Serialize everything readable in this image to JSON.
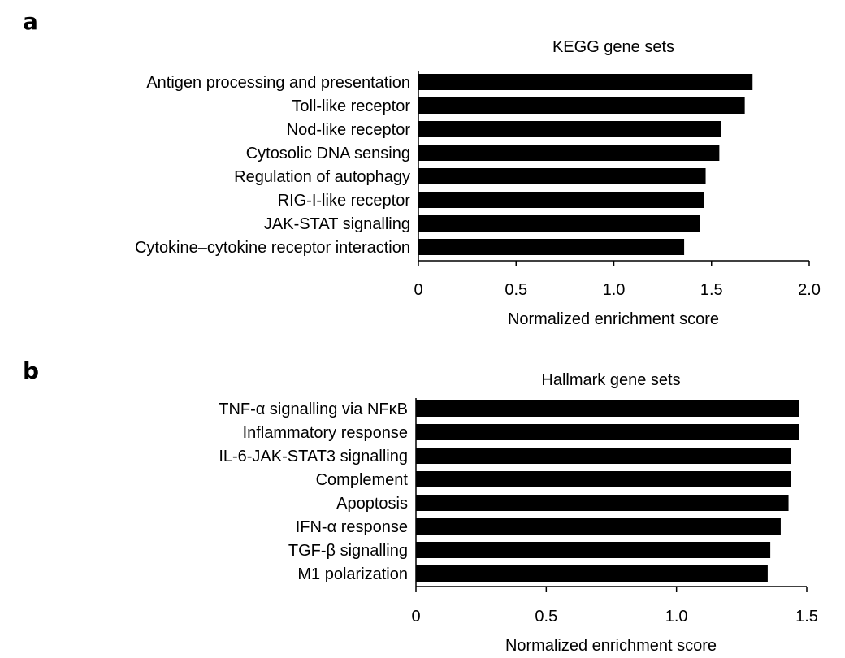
{
  "chart_data": [
    {
      "panel": "a",
      "type": "bar",
      "orientation": "horizontal",
      "title": "KEGG gene sets",
      "xlabel": "Normalized enrichment score",
      "ylabel": "",
      "xlim": [
        0,
        2.0
      ],
      "xticks": [
        0,
        0.5,
        1.0,
        1.5,
        2.0
      ],
      "xtick_labels": [
        "0",
        "0.5",
        "1.0",
        "1.5",
        "2.0"
      ],
      "categories": [
        "Antigen processing and presentation",
        "Toll-like receptor",
        "Nod-like receptor",
        "Cytosolic DNA sensing",
        "Regulation of autophagy",
        "RIG-I-like receptor",
        "JAK-STAT signalling",
        "Cytokine–cytokine receptor interaction"
      ],
      "values": [
        1.71,
        1.67,
        1.55,
        1.54,
        1.47,
        1.46,
        1.44,
        1.36
      ],
      "bar_color": "#000000",
      "grid": false,
      "legend": false
    },
    {
      "panel": "b",
      "type": "bar",
      "orientation": "horizontal",
      "title": "Hallmark gene sets",
      "xlabel": "Normalized enrichment score",
      "ylabel": "",
      "xlim": [
        0,
        1.5
      ],
      "xticks": [
        0,
        0.5,
        1.0,
        1.5
      ],
      "xtick_labels": [
        "0",
        "0.5",
        "1.0",
        "1.5"
      ],
      "categories": [
        "TNF-α signalling via NFκB",
        "Inflammatory response",
        "IL-6-JAK-STAT3 signalling",
        "Complement",
        "Apoptosis",
        "IFN-α response",
        "TGF-β signalling",
        "M1 polarization"
      ],
      "values": [
        1.47,
        1.47,
        1.44,
        1.44,
        1.43,
        1.4,
        1.36,
        1.35
      ],
      "bar_color": "#000000",
      "grid": false,
      "legend": false
    }
  ]
}
